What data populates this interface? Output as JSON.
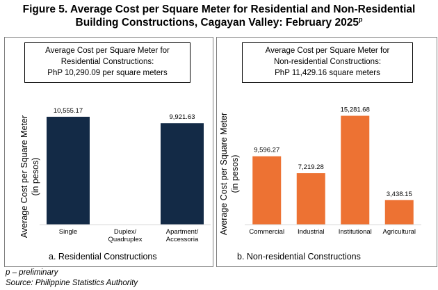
{
  "figure": {
    "title_line1": "Figure 5. Average Cost per Square Meter for Residential and Non-Residential",
    "title_line2": "Building Constructions, Cagayan Valley: February 2025",
    "title_superscript": "p"
  },
  "panels": [
    {
      "summary_line1": "Average Cost per Square Meter for",
      "summary_line2": "Residential Constructions:",
      "summary_line3": "PhP 10,290.09  per square meters",
      "caption": "a.    Residential Constructions"
    },
    {
      "summary_line1": "Average Cost per Square Meter for",
      "summary_line2": "Non-residential Constructions:",
      "summary_line3": "PhP 11,429.16  square meters",
      "caption": "b.    Non-residential Constructions"
    }
  ],
  "footnotes": {
    "preliminary": "p – preliminary",
    "source": "Source: Philippine Statistics Authority"
  },
  "colors": {
    "residential": "#132a46",
    "non_residential": "#ed7233"
  },
  "chart_data": [
    {
      "type": "bar",
      "title": "",
      "ylabel_line1": "Average Cost per Square Meter",
      "ylabel_line2": "(in pesos)",
      "categories": [
        [
          "Single"
        ],
        [
          "Duplex/",
          "Quadruplex"
        ],
        [
          "Apartment/",
          "Accessoria"
        ]
      ],
      "values": [
        10555.17,
        null,
        9921.63
      ],
      "labels": [
        "10,555.17",
        "",
        "9,921.63"
      ],
      "ylim": [
        0,
        11500
      ],
      "grid": false,
      "color": "#132a46"
    },
    {
      "type": "bar",
      "title": "",
      "ylabel_line1": "Average Cost per Square Meter",
      "ylabel_line2": "(in pesos)",
      "categories": [
        [
          "Commercial"
        ],
        [
          "Industrial"
        ],
        [
          "Institutional"
        ],
        [
          "Agricultural"
        ]
      ],
      "values": [
        9596.27,
        7219.28,
        15281.68,
        3438.15
      ],
      "labels": [
        "9,596.27",
        "7,219.28",
        "15,281.68",
        "3,438.15"
      ],
      "ylim": [
        0,
        16500
      ],
      "grid": false,
      "color": "#ed7233"
    }
  ]
}
